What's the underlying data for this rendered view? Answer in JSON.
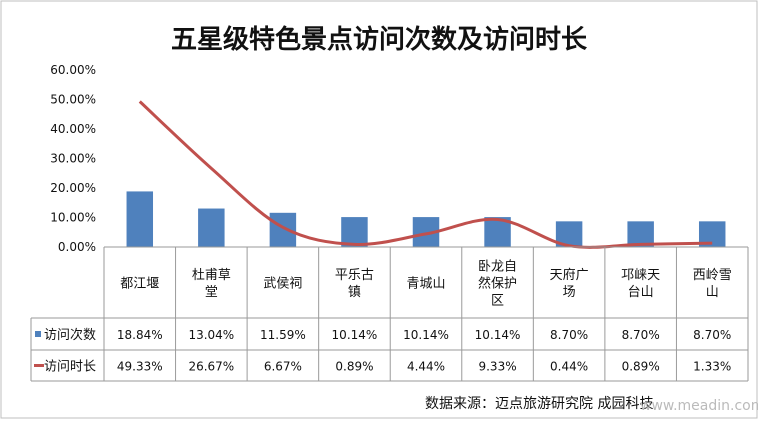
{
  "chart_data": {
    "type": "bar",
    "title": "五星级特色景点访问次数及访问时长",
    "categories": [
      [
        "都江堰"
      ],
      [
        "杜甫草",
        "堂"
      ],
      [
        "武侯祠"
      ],
      [
        "平乐古",
        "镇"
      ],
      [
        "青城山"
      ],
      [
        "卧龙自",
        "然保护",
        "区"
      ],
      [
        "天府广",
        "场"
      ],
      [
        "邛崃天",
        "台山"
      ],
      [
        "西岭雪",
        "山"
      ]
    ],
    "series": [
      {
        "name": "访问次数",
        "type": "bar",
        "color": "#4f81bd",
        "values": [
          18.84,
          13.04,
          11.59,
          10.14,
          10.14,
          10.14,
          8.7,
          8.7,
          8.7
        ],
        "labels": [
          "18.84%",
          "13.04%",
          "11.59%",
          "10.14%",
          "10.14%",
          "10.14%",
          "8.70%",
          "8.70%",
          "8.70%"
        ]
      },
      {
        "name": "访问时长",
        "type": "line",
        "color": "#c0504d",
        "values": [
          49.33,
          26.67,
          6.67,
          0.89,
          4.44,
          9.33,
          0.44,
          0.89,
          1.33
        ],
        "labels": [
          "49.33%",
          "26.67%",
          "6.67%",
          "0.89%",
          "4.44%",
          "9.33%",
          "0.44%",
          "0.89%",
          "1.33%"
        ]
      }
    ],
    "yticks": [
      "60.00%",
      "50.00%",
      "40.00%",
      "30.00%",
      "20.00%",
      "10.00%",
      "0.00%"
    ],
    "ylim": [
      0,
      60
    ],
    "ystep": 10,
    "grid": false,
    "legend": "data-table",
    "source": "数据来源：迈点旅游研究院   成园科技",
    "watermark": "www.meadin.com"
  }
}
